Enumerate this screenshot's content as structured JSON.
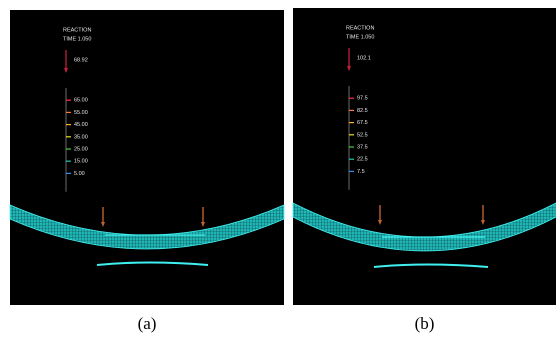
{
  "panels": [
    {
      "header": [
        "REACTION",
        "TIME 1.050"
      ],
      "max_label": "68.92",
      "legend": [
        "65.00",
        "55.00",
        "45.00",
        "35.00",
        "25.00",
        "15.00",
        "5.00"
      ],
      "caption": "(a)"
    },
    {
      "header": [
        "REACTION",
        "TIME 1.050"
      ],
      "max_label": "102.1",
      "legend": [
        "97.5",
        "82.5",
        "67.5",
        "52.5",
        "37.5",
        "22.5",
        "7.5"
      ],
      "caption": "(b)"
    }
  ]
}
